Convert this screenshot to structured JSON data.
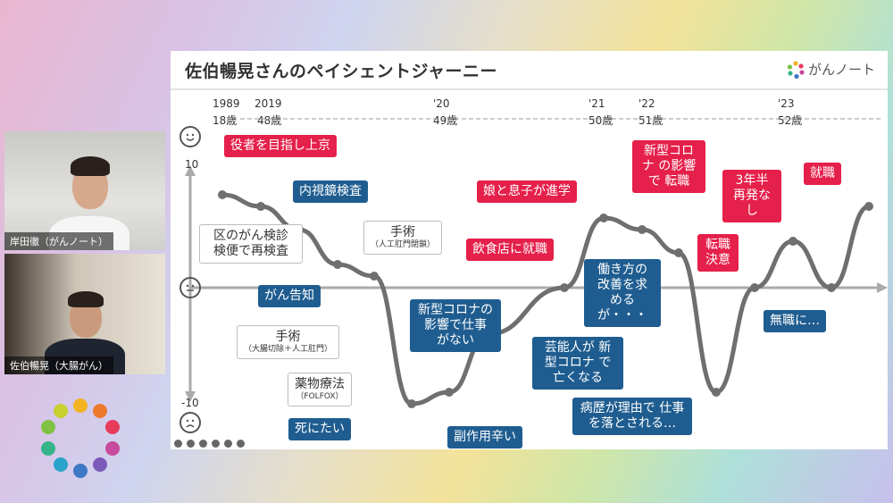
{
  "participants": [
    {
      "name": "岸田徹（がんノート）"
    },
    {
      "name": "佐伯暢晃（大腸がん）"
    }
  ],
  "slide": {
    "title": "佐伯暢晃さんのペイシェントジャーニー",
    "brand": "がんノート",
    "years": [
      "1989",
      "2019",
      "'20",
      "'21",
      "'22",
      "'23"
    ],
    "ages": [
      "18歳",
      "48歳",
      "49歳",
      "50歳",
      "51歳",
      "52歳"
    ],
    "y_ticks": [
      "10",
      "-10"
    ],
    "callouts": {
      "c1": "役者を目指し上京",
      "c2": "内視鏡検査",
      "c3": "区のがん検診 検便で再検査",
      "c4": "手術",
      "c4s": "（人工肛門閉鎖）",
      "c5": "がん告知",
      "c6": "手術",
      "c6s": "（大腸切除＋人工肛門）",
      "c7": "薬物療法",
      "c7s": "（FOLFOX）",
      "c8": "死にたい",
      "c9": "副作用辛い",
      "c10": "新型コロナの 影響で仕事 がない",
      "c11": "芸能人が 新型コロナ で亡くなる",
      "c12": "飲食店に就職",
      "c13": "娘と息子が進学",
      "c14": "働き方の 改善を求 めるが・・・",
      "c15": "病歴が理由で 仕事を落とされる…",
      "c16": "新型コロナ の影響で 転職",
      "c17": "転職 決意",
      "c18": "3年半 再発なし",
      "c19": "就職",
      "c20": "無職に…"
    }
  },
  "chart_data": {
    "type": "line",
    "title": "佐伯暢晃さんのペイシェントジャーニー",
    "x_labels": [
      "1989",
      "2019",
      "'20",
      "'21",
      "'22",
      "'23"
    ],
    "ylim": [
      -10,
      10
    ],
    "series": [
      {
        "values": [
          8,
          7,
          5,
          2,
          1,
          -10,
          -9,
          -4,
          0,
          6,
          5,
          3,
          -9,
          0,
          4,
          0,
          7
        ]
      }
    ]
  },
  "colors": {
    "red": "#e5204a",
    "blue": "#1f5d90",
    "line": "#6f6f6f"
  }
}
